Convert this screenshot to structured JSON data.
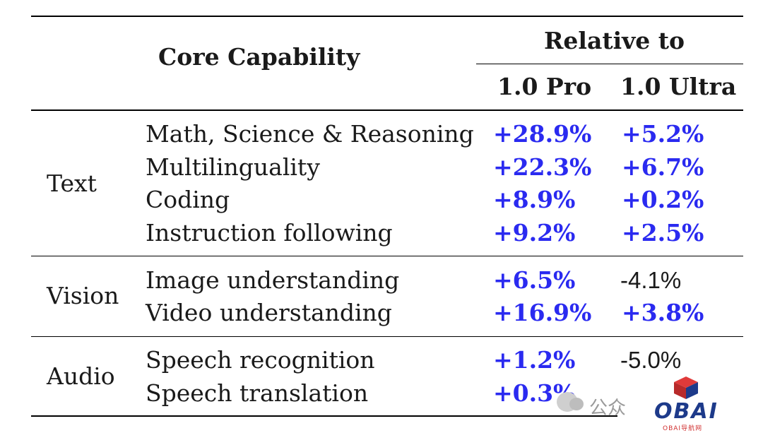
{
  "header": {
    "core_capability": "Core Capability",
    "relative_to": "Relative to",
    "col_pro": "1.0 Pro",
    "col_ultra": "1.0 Ultra"
  },
  "groups": [
    {
      "category": "Text",
      "rows": [
        {
          "label": "Math, Science & Reasoning",
          "pro": "+28.9%",
          "ultra": "+5.2%"
        },
        {
          "label": "Multilinguality",
          "pro": "+22.3%",
          "ultra": "+6.7%"
        },
        {
          "label": "Coding",
          "pro": "+8.9%",
          "ultra": "+0.2%"
        },
        {
          "label": "Instruction following",
          "pro": "+9.2%",
          "ultra": "+2.5%"
        }
      ]
    },
    {
      "category": "Vision",
      "rows": [
        {
          "label": "Image understanding",
          "pro": "+6.5%",
          "ultra": "-4.1%"
        },
        {
          "label": "Video understanding",
          "pro": "+16.9%",
          "ultra": "+3.8%"
        }
      ]
    },
    {
      "category": "Audio",
      "rows": [
        {
          "label": "Speech recognition",
          "pro": "+1.2%",
          "ultra": "-5.0%"
        },
        {
          "label": "Speech translation",
          "pro": "+0.3%",
          "ultra": ""
        }
      ]
    }
  ],
  "colors": {
    "positive": "#2a2af0",
    "negative": "#1a1a1a"
  },
  "watermark": {
    "text": "公众",
    "logo": "OBAI",
    "logo_sub": "OBAI导航网"
  }
}
